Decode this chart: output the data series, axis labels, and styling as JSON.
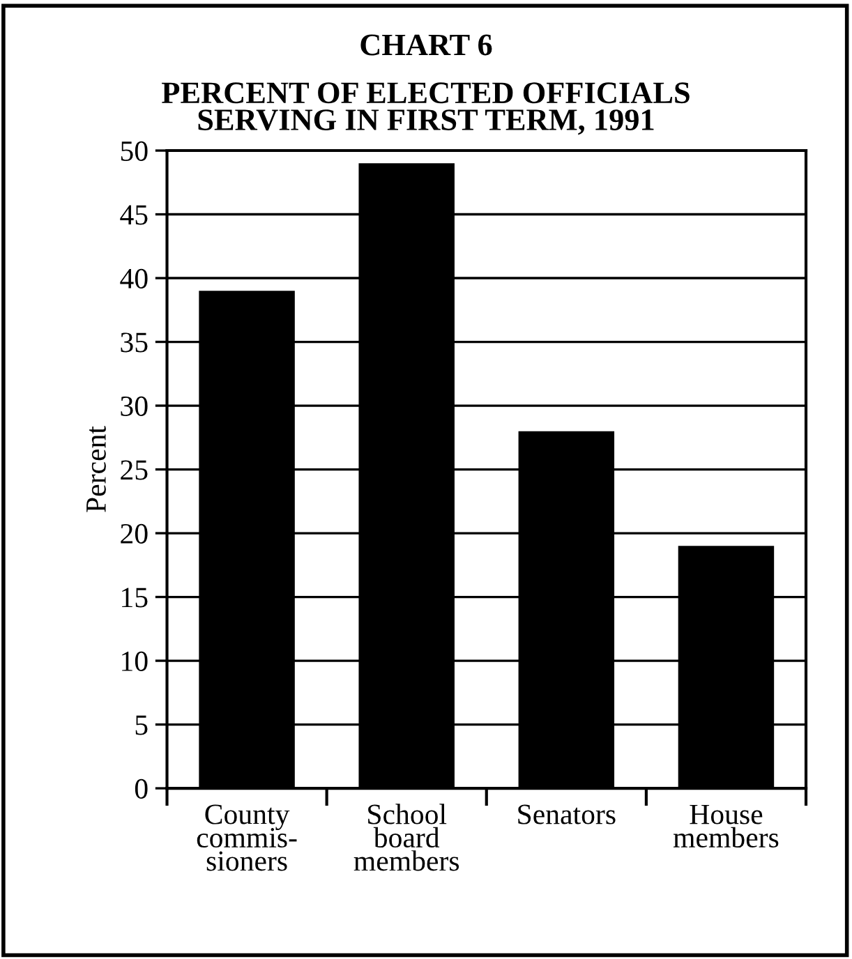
{
  "chart_data": {
    "type": "bar",
    "title": "CHART 6",
    "subtitle": "PERCENT OF ELECTED OFFICIALS\nSERVING IN FIRST TERM, 1991",
    "ylabel": "Percent",
    "categories": [
      "County\ncommis-\nsioners",
      "School\nboard\nmembers",
      "Senators",
      "House\nmembers"
    ],
    "values": [
      39,
      49,
      28,
      19
    ],
    "color": "#000000",
    "ylim": [
      0,
      50
    ],
    "yticks": [
      0,
      5,
      10,
      15,
      20,
      25,
      30,
      35,
      40,
      45,
      50
    ],
    "grid": "y",
    "legend": false
  }
}
